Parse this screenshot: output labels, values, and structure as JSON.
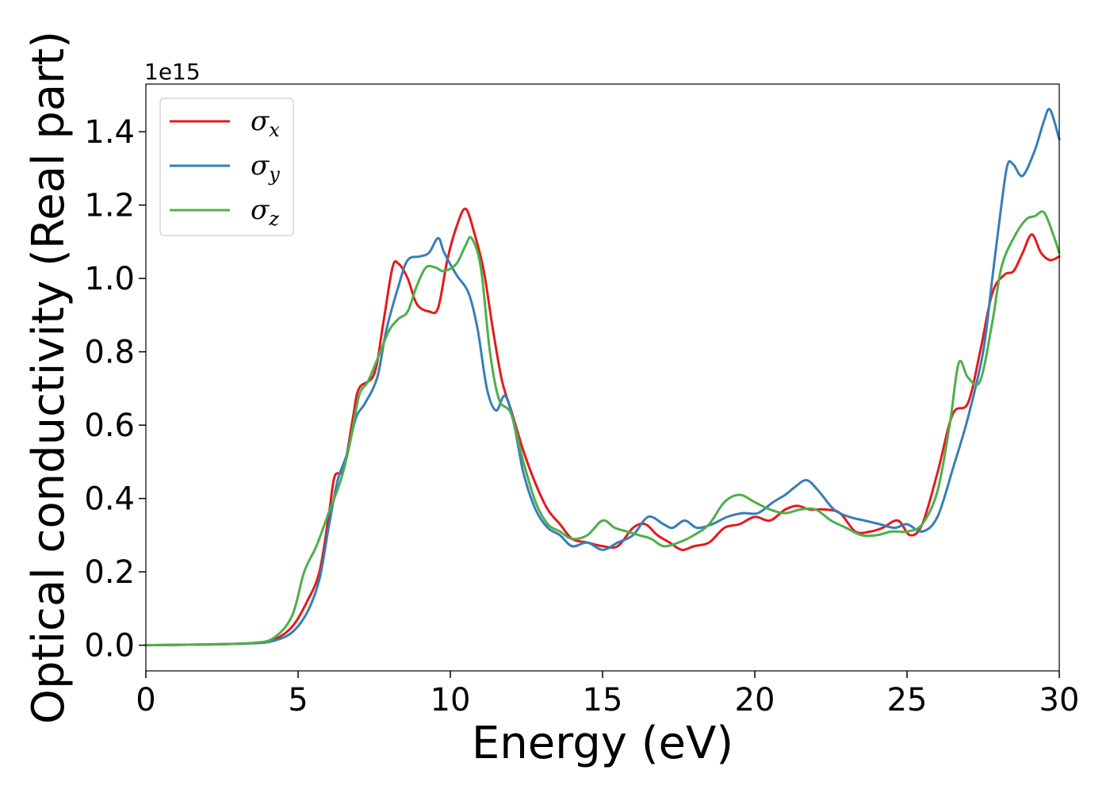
{
  "chart_data": {
    "type": "line",
    "xlabel": "Energy (eV)",
    "ylabel": "Optical conductivity (Real part)",
    "y_offset_label": "1e15",
    "xlim": [
      0,
      30
    ],
    "ylim": [
      -0.07,
      1.53
    ],
    "x_ticks": [
      0,
      5,
      10,
      15,
      20,
      25,
      30
    ],
    "x_tick_labels": [
      "0",
      "5",
      "10",
      "15",
      "20",
      "25",
      "30"
    ],
    "y_ticks": [
      0.0,
      0.2,
      0.4,
      0.6,
      0.8,
      1.0,
      1.2,
      1.4
    ],
    "y_tick_labels": [
      "0.0",
      "0.2",
      "0.4",
      "0.6",
      "0.8",
      "1.0",
      "1.2",
      "1.4"
    ],
    "grid": false,
    "legend_position": "top-left",
    "series": [
      {
        "name": "σx",
        "legend_base": "σ",
        "legend_sub": "x",
        "color": "#e41a1c",
        "points": [
          [
            0,
            0
          ],
          [
            2,
            0.002
          ],
          [
            3.5,
            0.006
          ],
          [
            4.2,
            0.015
          ],
          [
            4.8,
            0.05
          ],
          [
            5.3,
            0.12
          ],
          [
            5.7,
            0.2
          ],
          [
            6,
            0.35
          ],
          [
            6.2,
            0.46
          ],
          [
            6.5,
            0.48
          ],
          [
            6.8,
            0.62
          ],
          [
            7,
            0.7
          ],
          [
            7.5,
            0.74
          ],
          [
            7.8,
            0.88
          ],
          [
            8.1,
            1.03
          ],
          [
            8.3,
            1.04
          ],
          [
            8.6,
            1.0
          ],
          [
            8.9,
            0.93
          ],
          [
            9.3,
            0.91
          ],
          [
            9.6,
            0.92
          ],
          [
            9.9,
            1.05
          ],
          [
            10.2,
            1.14
          ],
          [
            10.5,
            1.19
          ],
          [
            10.8,
            1.12
          ],
          [
            11.1,
            1.02
          ],
          [
            11.4,
            0.86
          ],
          [
            11.7,
            0.72
          ],
          [
            12.0,
            0.64
          ],
          [
            12.4,
            0.53
          ],
          [
            12.8,
            0.44
          ],
          [
            13.2,
            0.37
          ],
          [
            13.6,
            0.33
          ],
          [
            14.0,
            0.29
          ],
          [
            14.5,
            0.28
          ],
          [
            15.0,
            0.27
          ],
          [
            15.5,
            0.27
          ],
          [
            16.0,
            0.32
          ],
          [
            16.4,
            0.33
          ],
          [
            16.8,
            0.3
          ],
          [
            17.2,
            0.28
          ],
          [
            17.6,
            0.26
          ],
          [
            18.0,
            0.27
          ],
          [
            18.5,
            0.28
          ],
          [
            19.0,
            0.32
          ],
          [
            19.5,
            0.33
          ],
          [
            20.0,
            0.35
          ],
          [
            20.5,
            0.34
          ],
          [
            21.0,
            0.37
          ],
          [
            21.4,
            0.38
          ],
          [
            21.8,
            0.37
          ],
          [
            22.3,
            0.37
          ],
          [
            22.8,
            0.36
          ],
          [
            23.3,
            0.31
          ],
          [
            23.8,
            0.31
          ],
          [
            24.2,
            0.32
          ],
          [
            24.7,
            0.34
          ],
          [
            25.1,
            0.3
          ],
          [
            25.5,
            0.33
          ],
          [
            26.0,
            0.47
          ],
          [
            26.5,
            0.63
          ],
          [
            27.0,
            0.66
          ],
          [
            27.4,
            0.8
          ],
          [
            27.8,
            0.96
          ],
          [
            28.2,
            1.01
          ],
          [
            28.5,
            1.02
          ],
          [
            28.8,
            1.07
          ],
          [
            29.1,
            1.12
          ],
          [
            29.4,
            1.07
          ],
          [
            29.7,
            1.05
          ],
          [
            30,
            1.06
          ]
        ]
      },
      {
        "name": "σy",
        "legend_base": "σ",
        "legend_sub": "y",
        "color": "#377eb8",
        "points": [
          [
            0,
            0
          ],
          [
            2,
            0.002
          ],
          [
            3.5,
            0.005
          ],
          [
            4.2,
            0.012
          ],
          [
            4.8,
            0.035
          ],
          [
            5.3,
            0.09
          ],
          [
            5.7,
            0.18
          ],
          [
            6,
            0.32
          ],
          [
            6.3,
            0.45
          ],
          [
            6.6,
            0.52
          ],
          [
            6.9,
            0.62
          ],
          [
            7.2,
            0.66
          ],
          [
            7.6,
            0.73
          ],
          [
            7.9,
            0.86
          ],
          [
            8.3,
            0.98
          ],
          [
            8.6,
            1.05
          ],
          [
            9.0,
            1.06
          ],
          [
            9.3,
            1.07
          ],
          [
            9.6,
            1.11
          ],
          [
            9.8,
            1.07
          ],
          [
            10.2,
            1.01
          ],
          [
            10.6,
            0.96
          ],
          [
            10.9,
            0.86
          ],
          [
            11.2,
            0.7
          ],
          [
            11.5,
            0.64
          ],
          [
            11.8,
            0.68
          ],
          [
            12.1,
            0.6
          ],
          [
            12.4,
            0.47
          ],
          [
            12.8,
            0.37
          ],
          [
            13.2,
            0.32
          ],
          [
            13.6,
            0.3
          ],
          [
            14.0,
            0.27
          ],
          [
            14.5,
            0.28
          ],
          [
            15.0,
            0.26
          ],
          [
            15.5,
            0.28
          ],
          [
            16.0,
            0.3
          ],
          [
            16.5,
            0.35
          ],
          [
            17.0,
            0.33
          ],
          [
            17.3,
            0.32
          ],
          [
            17.7,
            0.34
          ],
          [
            18.1,
            0.32
          ],
          [
            18.6,
            0.33
          ],
          [
            19.1,
            0.35
          ],
          [
            19.6,
            0.36
          ],
          [
            20.1,
            0.36
          ],
          [
            20.6,
            0.39
          ],
          [
            21.0,
            0.41
          ],
          [
            21.3,
            0.43
          ],
          [
            21.7,
            0.45
          ],
          [
            22.1,
            0.42
          ],
          [
            22.6,
            0.37
          ],
          [
            23.1,
            0.35
          ],
          [
            23.6,
            0.34
          ],
          [
            24.1,
            0.33
          ],
          [
            24.6,
            0.32
          ],
          [
            25.0,
            0.33
          ],
          [
            25.5,
            0.31
          ],
          [
            26.0,
            0.35
          ],
          [
            26.5,
            0.48
          ],
          [
            27.0,
            0.62
          ],
          [
            27.5,
            0.8
          ],
          [
            27.8,
            1.0
          ],
          [
            28.1,
            1.2
          ],
          [
            28.3,
            1.31
          ],
          [
            28.5,
            1.31
          ],
          [
            28.8,
            1.28
          ],
          [
            29.2,
            1.35
          ],
          [
            29.5,
            1.43
          ],
          [
            29.7,
            1.46
          ],
          [
            30,
            1.38
          ]
        ]
      },
      {
        "name": "σz",
        "legend_base": "σ",
        "legend_sub": "z",
        "color": "#4daf4a",
        "points": [
          [
            0,
            0
          ],
          [
            2,
            0.002
          ],
          [
            3.5,
            0.006
          ],
          [
            4.2,
            0.02
          ],
          [
            4.8,
            0.08
          ],
          [
            5.2,
            0.2
          ],
          [
            5.6,
            0.27
          ],
          [
            6.0,
            0.36
          ],
          [
            6.4,
            0.45
          ],
          [
            6.7,
            0.55
          ],
          [
            7.0,
            0.68
          ],
          [
            7.3,
            0.72
          ],
          [
            7.7,
            0.8
          ],
          [
            8.0,
            0.86
          ],
          [
            8.3,
            0.89
          ],
          [
            8.6,
            0.91
          ],
          [
            8.9,
            0.98
          ],
          [
            9.2,
            1.03
          ],
          [
            9.5,
            1.03
          ],
          [
            9.8,
            1.02
          ],
          [
            10.2,
            1.04
          ],
          [
            10.5,
            1.09
          ],
          [
            10.7,
            1.11
          ],
          [
            11.0,
            1.03
          ],
          [
            11.3,
            0.8
          ],
          [
            11.6,
            0.67
          ],
          [
            12.0,
            0.63
          ],
          [
            12.4,
            0.5
          ],
          [
            12.8,
            0.39
          ],
          [
            13.2,
            0.33
          ],
          [
            13.6,
            0.31
          ],
          [
            14.0,
            0.29
          ],
          [
            14.5,
            0.3
          ],
          [
            15.0,
            0.34
          ],
          [
            15.4,
            0.32
          ],
          [
            15.8,
            0.31
          ],
          [
            16.2,
            0.3
          ],
          [
            16.6,
            0.29
          ],
          [
            17.0,
            0.27
          ],
          [
            17.5,
            0.28
          ],
          [
            18.0,
            0.3
          ],
          [
            18.5,
            0.33
          ],
          [
            19.0,
            0.39
          ],
          [
            19.5,
            0.41
          ],
          [
            20.0,
            0.39
          ],
          [
            20.5,
            0.37
          ],
          [
            21.0,
            0.36
          ],
          [
            21.5,
            0.37
          ],
          [
            22.0,
            0.37
          ],
          [
            22.5,
            0.34
          ],
          [
            23.0,
            0.32
          ],
          [
            23.5,
            0.3
          ],
          [
            24.0,
            0.3
          ],
          [
            24.5,
            0.31
          ],
          [
            25.0,
            0.31
          ],
          [
            25.5,
            0.33
          ],
          [
            26.0,
            0.42
          ],
          [
            26.4,
            0.6
          ],
          [
            26.7,
            0.77
          ],
          [
            27.0,
            0.73
          ],
          [
            27.4,
            0.72
          ],
          [
            27.8,
            0.88
          ],
          [
            28.1,
            1.03
          ],
          [
            28.5,
            1.11
          ],
          [
            28.9,
            1.16
          ],
          [
            29.2,
            1.17
          ],
          [
            29.5,
            1.18
          ],
          [
            29.8,
            1.12
          ],
          [
            30,
            1.07
          ]
        ]
      }
    ]
  }
}
